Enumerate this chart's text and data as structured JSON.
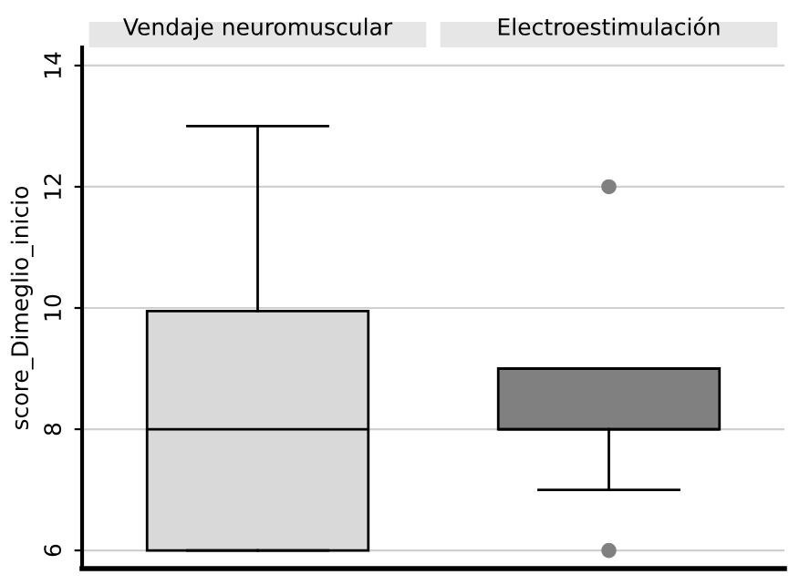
{
  "chart_data": {
    "type": "box",
    "ylabel": "score_Dimeglio_inicio",
    "categories": [
      "Vendaje neuromuscular",
      "Electroestimulación"
    ],
    "colors": [
      "#d9d9d9",
      "#808080"
    ],
    "boxes": [
      {
        "low": 6,
        "q1": 6,
        "median": 8,
        "q3": 9.95,
        "high": 13
      },
      {
        "low": 7,
        "q1": 8,
        "median": 8,
        "q3": 9,
        "high": 9,
        "outliers": [
          12,
          6
        ]
      }
    ],
    "ylim": [
      5.7,
      14.3
    ],
    "yticks": [
      6,
      8,
      10,
      12,
      14
    ],
    "grid": "y"
  }
}
